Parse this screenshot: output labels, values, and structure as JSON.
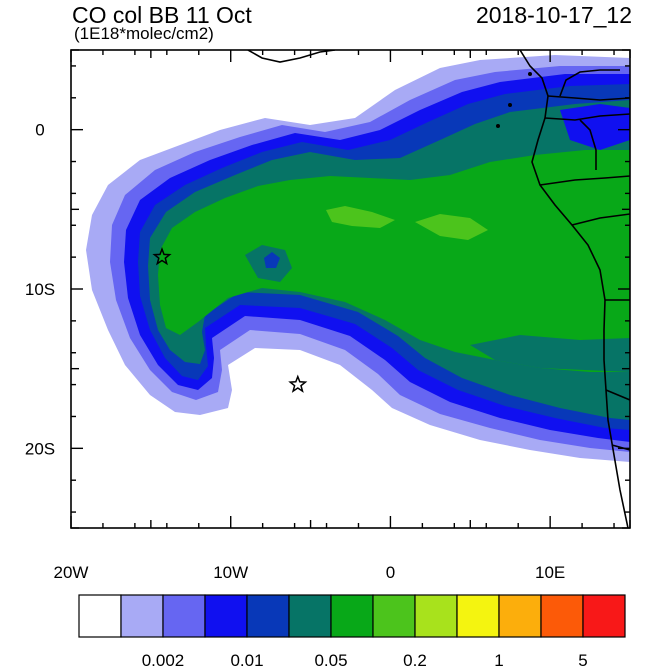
{
  "header": {
    "title": "CO col BB 11 Oct",
    "units": "(1E18*molec/cm2)",
    "datetime": "2018-10-17_12"
  },
  "map": {
    "lon_range": [
      -20,
      15
    ],
    "lat_range": [
      -25,
      5
    ],
    "lon_ticks": [
      {
        "value": -20,
        "label": "20W"
      },
      {
        "value": -10,
        "label": "10W"
      },
      {
        "value": 0,
        "label": "0"
      },
      {
        "value": 10,
        "label": "10E"
      }
    ],
    "lat_ticks": [
      {
        "value": 0,
        "label": "0"
      },
      {
        "value": -10,
        "label": "10S"
      },
      {
        "value": -20,
        "label": "20S"
      }
    ],
    "markers": [
      {
        "name": "star-marker-1",
        "lon": -14.3,
        "lat": -8.0
      },
      {
        "name": "star-marker-2",
        "lon": -5.8,
        "lat": -16.0
      }
    ]
  },
  "colorbar": {
    "colors": [
      "#ffffff",
      "#a8aaf5",
      "#6666f2",
      "#1010f0",
      "#0838b8",
      "#067466",
      "#08a818",
      "#4cc41c",
      "#a8e21c",
      "#f4f410",
      "#fcae0c",
      "#fc5a08",
      "#f81818"
    ],
    "labels": [
      {
        "after_box": 2,
        "text": "0.002"
      },
      {
        "after_box": 4,
        "text": "0.01"
      },
      {
        "after_box": 6,
        "text": "0.05"
      },
      {
        "after_box": 8,
        "text": "0.2"
      },
      {
        "after_box": 10,
        "text": "1"
      },
      {
        "after_box": 12,
        "text": "5"
      }
    ]
  }
}
